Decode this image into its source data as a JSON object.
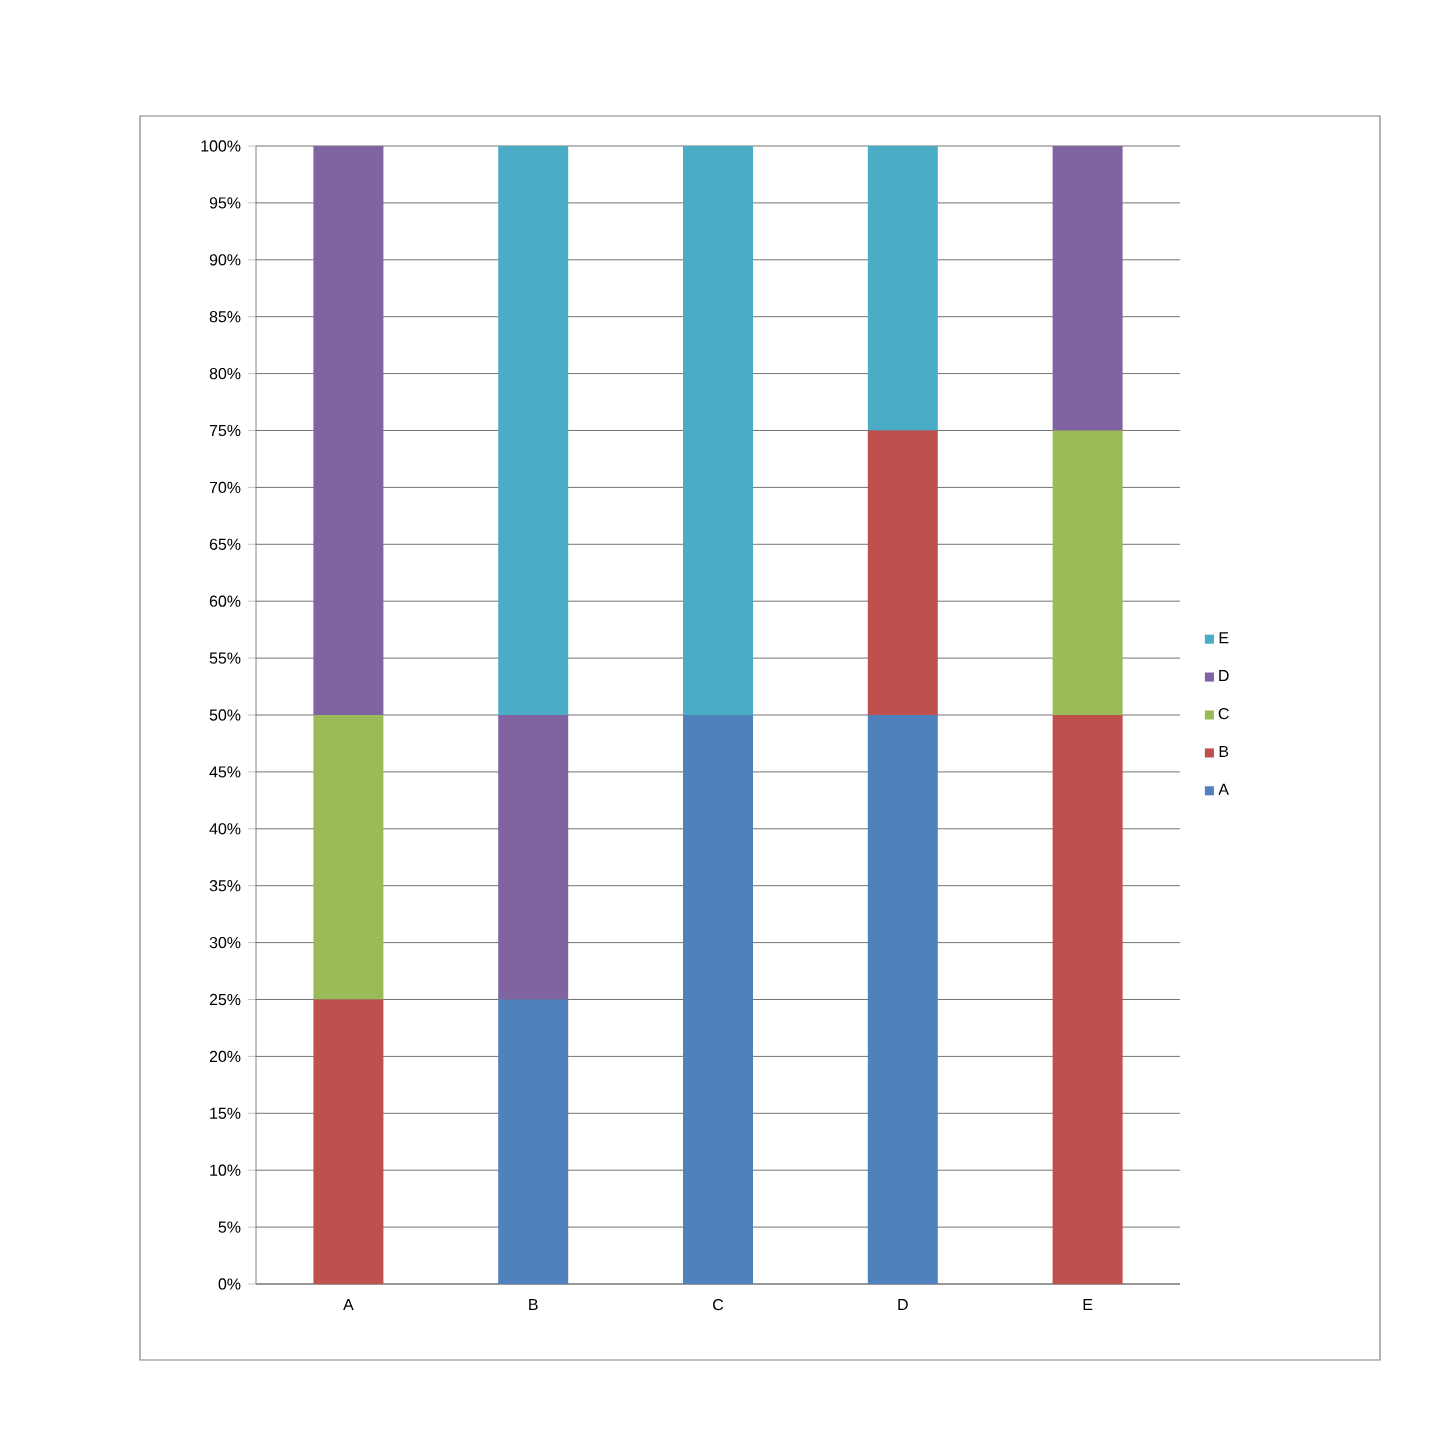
{
  "chart_data": {
    "type": "bar",
    "stacked": true,
    "categories": [
      "A",
      "B",
      "C",
      "D",
      "E"
    ],
    "series": [
      {
        "name": "A",
        "color": "#4f81bd",
        "values": [
          0,
          25,
          50,
          50,
          0
        ]
      },
      {
        "name": "B",
        "color": "#c0504d",
        "values": [
          25,
          0,
          0,
          25,
          50
        ]
      },
      {
        "name": "C",
        "color": "#9bbb59",
        "values": [
          25,
          0,
          0,
          0,
          25
        ]
      },
      {
        "name": "D",
        "color": "#8064a2",
        "values": [
          50,
          25,
          0,
          0,
          25
        ]
      },
      {
        "name": "E",
        "color": "#4bacc6",
        "values": [
          0,
          50,
          50,
          25,
          0
        ]
      }
    ],
    "ylim": [
      0,
      100
    ],
    "yticks": [
      {
        "value": 0,
        "label": "0%"
      },
      {
        "value": 5,
        "label": "5%"
      },
      {
        "value": 10,
        "label": "10%"
      },
      {
        "value": 15,
        "label": "15%"
      },
      {
        "value": 20,
        "label": "20%"
      },
      {
        "value": 25,
        "label": "25%"
      },
      {
        "value": 30,
        "label": "30%"
      },
      {
        "value": 35,
        "label": "35%"
      },
      {
        "value": 40,
        "label": "40%"
      },
      {
        "value": 45,
        "label": "45%"
      },
      {
        "value": 50,
        "label": "50%"
      },
      {
        "value": 55,
        "label": "55%"
      },
      {
        "value": 60,
        "label": "60%"
      },
      {
        "value": 65,
        "label": "65%"
      },
      {
        "value": 70,
        "label": "70%"
      },
      {
        "value": 75,
        "label": "75%"
      },
      {
        "value": 80,
        "label": "80%"
      },
      {
        "value": 85,
        "label": "85%"
      },
      {
        "value": 90,
        "label": "90%"
      },
      {
        "value": 95,
        "label": "95%"
      },
      {
        "value": 100,
        "label": "100%"
      }
    ],
    "grid": "y",
    "legend": "right"
  }
}
